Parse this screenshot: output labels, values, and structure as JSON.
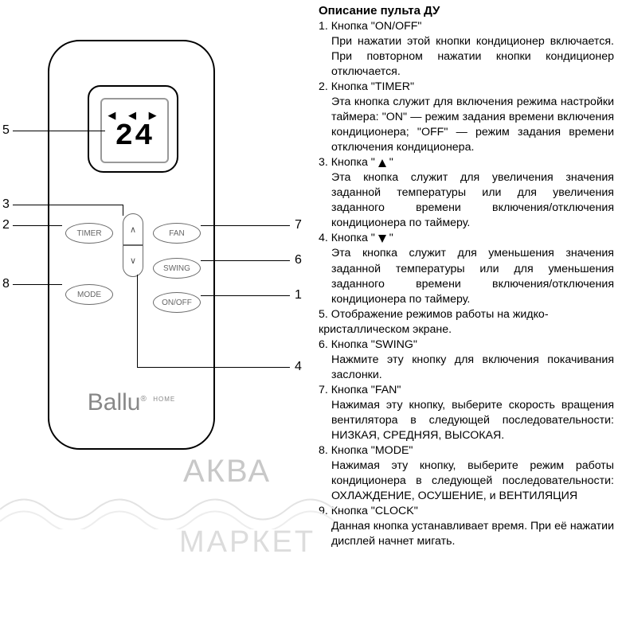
{
  "title": "Описание пульта ДУ",
  "remote": {
    "lcd": {
      "display_value": "24",
      "arrow_left": "◀",
      "arrow_right": "▶",
      "arrow_left2": "◀"
    },
    "buttons": {
      "timer": "TIMER",
      "fan": "FAN",
      "swing": "SWING",
      "mode": "MODE",
      "onoff": "ON/OFF",
      "up": "∧",
      "down": "∨"
    },
    "brand": "Ballu",
    "brand_suffix": "®",
    "brand_home": "HOME"
  },
  "callouts": {
    "c1": "1",
    "c2": "2",
    "c3": "3",
    "c4": "4",
    "c5": "5",
    "c6": "6",
    "c7": "7",
    "c8": "8"
  },
  "items": [
    {
      "num": "1.",
      "name": "Кнопка \"ON/OFF\"",
      "body": "При нажатии этой кнопки кондиционер включается. При повторном нажатии кноп­ки кондиционер отключается."
    },
    {
      "num": "2.",
      "name": "Кнопка \"TIMER\"",
      "body": "Эта кнопка служит для включения режи­ма настройки таймера: \"ON\" — режим за­дания времени включения кондиционера; \"OFF\" — режим задания времени отключе­ния кондиционера."
    },
    {
      "num": "3.",
      "name": "Кнопка \" ▲ \"",
      "body": "Эта кнопка служит для увеличения значе­ния заданной температуры или для увели­чения заданного времени включения/от­ключения кондиционера по таймеру."
    },
    {
      "num": "4.",
      "name": "Кнопка \" ▼ \"",
      "body": "Эта кнопка служит для уменьшения значе­ния заданной температуры или для умень­шения заданного времени включения/от­ключения кондиционера по таймеру."
    },
    {
      "num": "5.",
      "name": "Отображение режимов работы на жидко­кристаллическом экране.",
      "body": ""
    },
    {
      "num": "6.",
      "name": "Кнопка \"SWING\"",
      "body": "Нажмите эту кнопку для включения пока­чивания заслонки."
    },
    {
      "num": "7.",
      "name": "Кнопка \"FAN\"",
      "body": "Нажимая эту кнопку, выберите скорость вращения вентилятора в следующей по­следовательности: НИЗКАЯ, СРЕДНЯЯ, ВЫСОКАЯ."
    },
    {
      "num": "8.",
      "name": "Кнопка \"MODE\"",
      "body": "Нажимая эту кнопку, выберите режим ра­боты кондиционера в следующей последо­вательности: ОХЛАЖДЕНИЕ, ОСУШЕНИЕ, и ВЕНТИЛЯЦИЯ"
    },
    {
      "num": "9.",
      "name": "Кнопка \"CLOCK\"",
      "body": "Данная кнопка устанавливает время. При её нажатии дисплей начнет мигать."
    }
  ],
  "watermark1": "АКВА",
  "watermark2": "МАРКЕТ",
  "colors": {
    "text": "#000000",
    "remote_border": "#000000",
    "btn_border": "#6a6a6a",
    "btn_text": "#666666",
    "watermark": "#c8c8c8",
    "wave": "#e3e3e3"
  },
  "fontsizes": {
    "title": 15,
    "body": 14.2,
    "lcd_number": 38,
    "callout": 16,
    "brand": 30
  }
}
